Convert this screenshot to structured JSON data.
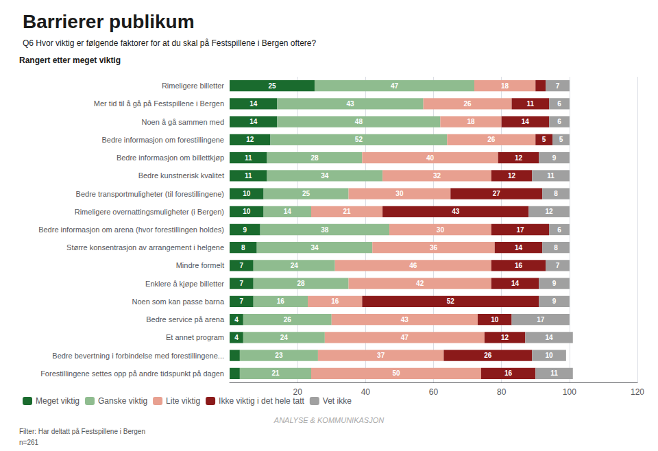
{
  "chart_data": {
    "type": "bar",
    "orientation": "horizontal",
    "stacked": true,
    "title": "Barrierer publikum",
    "subtitle": "Q6 Hvor viktig er følgende faktorer for at du skal på Festspillene i Bergen oftere?",
    "annotations": [
      "Rangert etter meget viktig",
      "ANALYSE & KOMMUNIKASJON",
      "Filter: Har deltatt på Festspillene i Bergen",
      "n=261"
    ],
    "categories": [
      "Rimeligere billetter",
      "Mer tid til å gå på Festspillene i Bergen",
      "Noen å gå sammen med",
      "Bedre informasjon om forestillingene",
      "Bedre informasjon om billettkjøp",
      "Bedre kunstnerisk kvalitet",
      "Bedre transportmuligheter (til forestillingene)",
      "Rimeligere overnattingsmuligheter (i Bergen)",
      "Bedre informasjon om arena (hvor forestillingen holdes)",
      "Større konsentrasjon av arrangement i helgene",
      "Mindre formelt",
      "Enklere å kjøpe billetter",
      "Noen som kan passe barna",
      "Bedre service på arena",
      "Et annet program",
      "Bedre bevertning i forbindelse med forestillingene...",
      "Forestillingene settes opp på andre tidspunkt på dagen"
    ],
    "series": [
      {
        "name": "Meget viktig",
        "color": "#1a6b2e",
        "values": [
          25,
          14,
          14,
          12,
          11,
          11,
          10,
          10,
          9,
          8,
          7,
          7,
          7,
          4,
          4,
          3,
          3
        ],
        "value_labels": [
          "25",
          "14",
          "14",
          "12",
          "11",
          "11",
          "10",
          "10",
          "9",
          "8",
          "7",
          "7",
          "7",
          "4",
          "4",
          null,
          null
        ]
      },
      {
        "name": "Ganske viktig",
        "color": "#8fbc8f",
        "values": [
          47,
          43,
          48,
          52,
          28,
          34,
          25,
          14,
          38,
          34,
          24,
          28,
          16,
          26,
          24,
          23,
          21
        ],
        "value_labels": [
          "47",
          "43",
          "48",
          "52",
          "28",
          "34",
          "25",
          "14",
          "38",
          "34",
          "24",
          "28",
          "16",
          "26",
          "24",
          "23",
          "21"
        ]
      },
      {
        "name": "Lite viktig",
        "color": "#e8a090",
        "values": [
          18,
          26,
          18,
          26,
          40,
          32,
          30,
          21,
          30,
          36,
          46,
          42,
          16,
          43,
          47,
          37,
          50
        ],
        "value_labels": [
          "18",
          "26",
          "18",
          "26",
          "40",
          "32",
          "30",
          "21",
          "30",
          "36",
          "46",
          "42",
          "16",
          "43",
          "47",
          "37",
          "50"
        ]
      },
      {
        "name": "Ikke viktig i det hele tatt",
        "color": "#8b1a1a",
        "values": [
          3,
          11,
          14,
          5,
          12,
          12,
          27,
          43,
          17,
          14,
          16,
          14,
          52,
          10,
          12,
          26,
          16
        ],
        "value_labels": [
          null,
          "11",
          "14",
          "5",
          "12",
          "12",
          "27",
          "43",
          "17",
          "14",
          "16",
          "14",
          "52",
          "10",
          "12",
          "26",
          "16"
        ]
      },
      {
        "name": "Vet ikke",
        "color": "#a0a0a0",
        "values": [
          7,
          6,
          6,
          5,
          9,
          11,
          8,
          12,
          6,
          8,
          7,
          9,
          9,
          17,
          14,
          10,
          11
        ],
        "value_labels": [
          "7",
          "6",
          "6",
          "5",
          "9",
          "11",
          "8",
          "12",
          "6",
          "8",
          "7",
          "9",
          "9",
          "17",
          "14",
          "10",
          "11"
        ]
      }
    ],
    "xlim": [
      0,
      120
    ],
    "xticks": [
      20,
      40,
      60,
      80,
      100,
      120
    ],
    "grid": true,
    "legend": "bottom",
    "data_labels": true
  }
}
